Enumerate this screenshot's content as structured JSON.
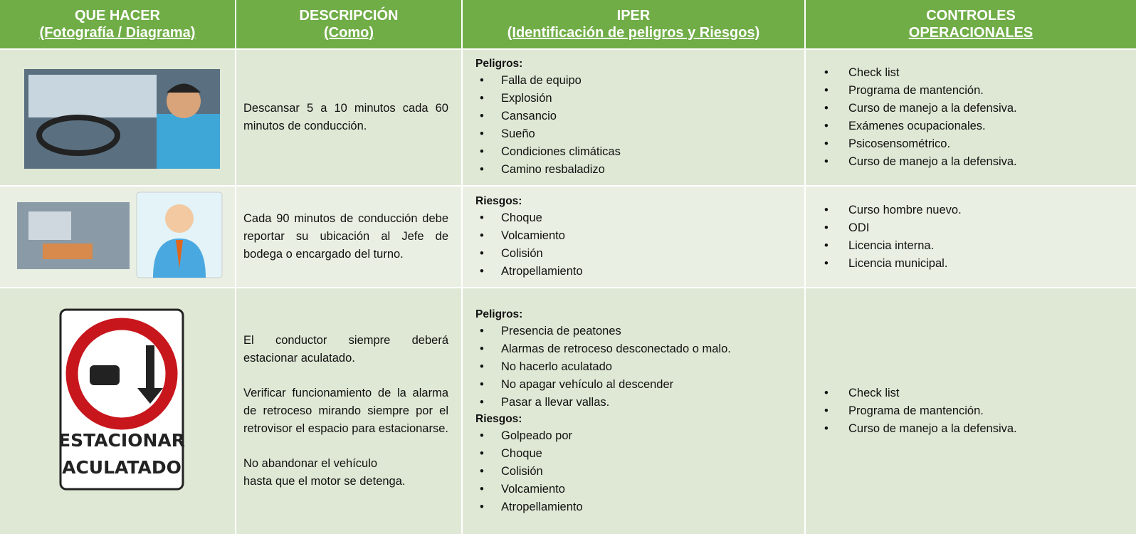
{
  "header": [
    {
      "line1": "QUE HACER",
      "line2": "(Fotografía / Diagrama)"
    },
    {
      "line1": "DESCRIPCIÓN",
      "line2": "(Como)"
    },
    {
      "line1": "IPER",
      "line2": "(Identificación de peligros y Riesgos)"
    },
    {
      "line1": "CONTROLES",
      "line2": "OPERACIONALES"
    }
  ],
  "rows": [
    {
      "description": [
        "Descansar 5 a 10 minutos cada 60 minutos de conducción."
      ],
      "iper": [
        {
          "label": "Peligros:",
          "items": [
            "Falla de equipo",
            "Explosión",
            "Cansancio",
            "Sueño",
            "Condiciones climáticas",
            "Camino resbaladizo"
          ]
        }
      ],
      "controls": [
        "Check list",
        "Programa de mantención.",
        "Curso de manejo a la defensiva.",
        "Exámenes ocupacionales.",
        "Psicosensométrico.",
        "Curso de manejo a la defensiva."
      ]
    },
    {
      "description": [
        "Cada 90 minutos de conducción debe reportar su ubicación al Jefe de bodega o encargado del turno."
      ],
      "iper": [
        {
          "label": "Riesgos:",
          "items": [
            "Choque",
            "Volcamiento",
            "Colisión",
            "Atropellamiento"
          ]
        }
      ],
      "controls": [
        "Curso hombre nuevo.",
        "ODI",
        "Licencia interna.",
        "Licencia municipal."
      ]
    },
    {
      "image_text": [
        "ESTACIONAR",
        "ACULATADO"
      ],
      "description": [
        "El conductor siempre deberá estacionar aculatado.",
        "Verificar funcionamiento de la alarma de retroceso mirando siempre por el retrovisor el espacio para estacionarse.",
        "No abandonar el vehículo",
        "hasta que el motor se detenga."
      ],
      "iper": [
        {
          "label": "Peligros:",
          "items": [
            "Presencia de peatones",
            "Alarmas de retroceso desconectado o malo.",
            "No hacerlo aculatado",
            "No apagar vehículo al descender",
            "Pasar a llevar vallas."
          ]
        },
        {
          "label": "Riesgos:",
          "items": [
            "Golpeado por",
            "Choque",
            "Colisión",
            "Volcamiento",
            "Atropellamiento"
          ]
        }
      ],
      "controls": [
        "Check list",
        "Programa de mantención.",
        "Curso de manejo a la defensiva."
      ]
    }
  ]
}
